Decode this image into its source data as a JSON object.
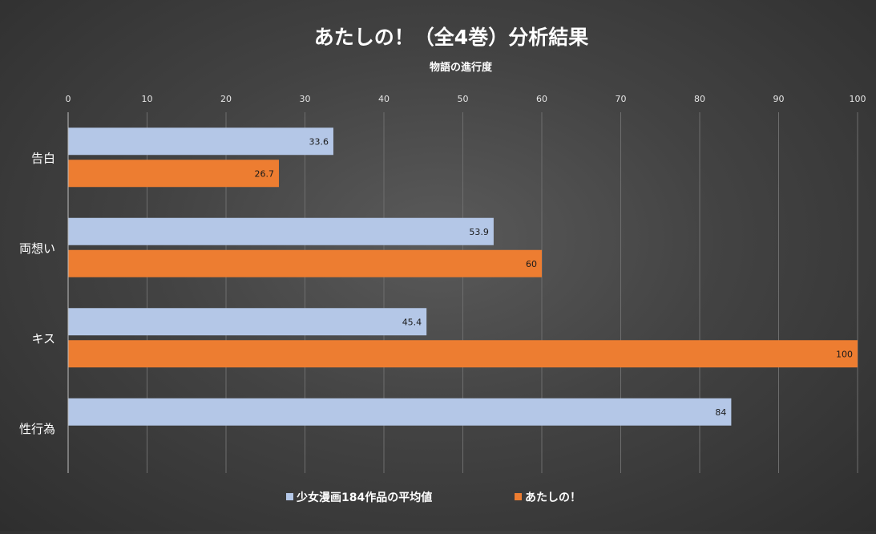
{
  "chart_data": {
    "type": "bar",
    "orientation": "horizontal",
    "title": "あたしの！（全4巻）分析結果",
    "xlabel": "物語の進行度",
    "xlim": [
      0,
      100
    ],
    "xticks": [
      0,
      10,
      20,
      30,
      40,
      50,
      60,
      70,
      80,
      90,
      100
    ],
    "x_axis_position": "top",
    "grid": true,
    "legend": "bottom",
    "categories": [
      "告白",
      "両想い",
      "キス",
      "性行為"
    ],
    "series": [
      {
        "name": "少女漫画184作品の平均値",
        "color": "#b4c7e7",
        "values": [
          33.6,
          53.9,
          45.4,
          84
        ],
        "labels": [
          "33.6",
          "53.9",
          "45.4",
          "84"
        ]
      },
      {
        "name": "あたしの！",
        "color": "#ed7d31",
        "values": [
          26.7,
          60,
          100,
          null
        ],
        "labels": [
          "26.7",
          "60",
          "100",
          ""
        ]
      }
    ]
  }
}
